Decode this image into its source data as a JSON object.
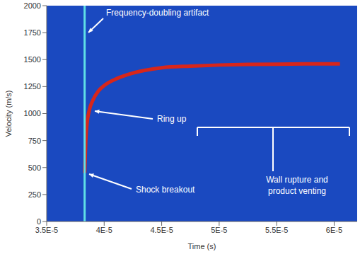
{
  "chart_data": {
    "type": "line",
    "x_label": "Time (s)",
    "y_label": "Velocity (m/s)",
    "xlim": [
      3.5e-05,
      6.2e-05
    ],
    "xticks": [
      {
        "value": 3.5e-05,
        "label": "3.5E-5"
      },
      {
        "value": 4e-05,
        "label": "4E-5"
      },
      {
        "value": 4.5e-05,
        "label": "4.5E-5"
      },
      {
        "value": 5e-05,
        "label": "5E-5"
      },
      {
        "value": 5.5e-05,
        "label": "5.5E-5"
      },
      {
        "value": 6e-05,
        "label": "6E-5"
      }
    ],
    "ylim": [
      0,
      2000
    ],
    "yticks": [
      0,
      250,
      500,
      750,
      1000,
      1250,
      1500,
      1750,
      2000
    ],
    "series": [
      {
        "color": "#d8261a",
        "x": [
          3.83e-05,
          3.84e-05,
          3.85e-05,
          3.87e-05,
          3.9e-05,
          3.95e-05,
          4e-05,
          4.1e-05,
          4.2e-05,
          4.35e-05,
          4.5e-05,
          4.75e-05,
          5e-05,
          5.25e-05,
          5.5e-05,
          5.75e-05,
          6e-05,
          6.05e-05
        ],
        "values": [
          450,
          750,
          900,
          1030,
          1120,
          1210,
          1260,
          1320,
          1360,
          1400,
          1425,
          1440,
          1450,
          1455,
          1458,
          1460,
          1460,
          1460
        ]
      },
      {
        "color": "#5fe0e6",
        "x": [
          3.83e-05,
          3.83e-05
        ],
        "values": [
          0,
          2000
        ]
      }
    ],
    "annotations": [
      {
        "text": "Frequency-doubling artifact"
      },
      {
        "text": "Ring up"
      },
      {
        "text": "Shock breakout"
      },
      {
        "text": "Wall rupture and product venting"
      }
    ]
  }
}
